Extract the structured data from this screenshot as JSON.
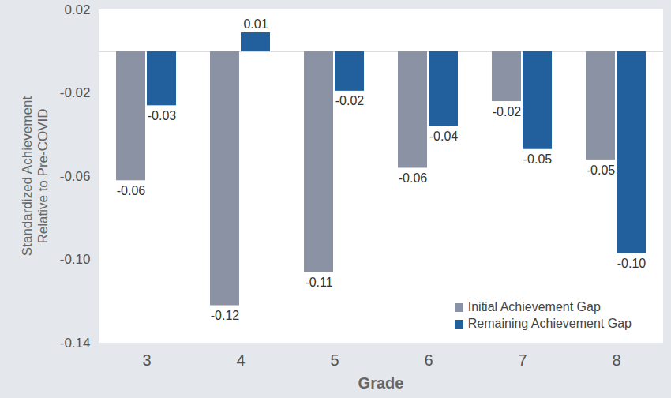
{
  "chart_data": {
    "type": "bar",
    "categories": [
      "3",
      "4",
      "5",
      "6",
      "7",
      "8"
    ],
    "series": [
      {
        "name": "Initial Achievement Gap",
        "color": "#8a92a4",
        "values": [
          -0.062,
          -0.122,
          -0.106,
          -0.056,
          -0.024,
          -0.052
        ],
        "value_labels": [
          "-0.06",
          "-0.12",
          "-0.11",
          "-0.06",
          "-0.02",
          "-0.05"
        ]
      },
      {
        "name": "Remaining Achievement Gap",
        "color": "#21609c",
        "values": [
          -0.026,
          0.009,
          -0.019,
          -0.036,
          -0.047,
          -0.097
        ],
        "value_labels": [
          "-0.03",
          "0.01",
          "-0.02",
          "-0.04",
          "-0.05",
          "-0.10"
        ]
      }
    ],
    "xlabel": "Grade",
    "ylabel": "Standardized Achievement Relative to Pre-COVID",
    "ylim": [
      -0.14,
      0.02
    ],
    "yticks": [
      -0.14,
      {
        "value": -0.1,
        "label": "-0.10"
      },
      -0.06,
      -0.02,
      0.02
    ],
    "grid": false,
    "legend": "lower right",
    "data_labels": true
  }
}
